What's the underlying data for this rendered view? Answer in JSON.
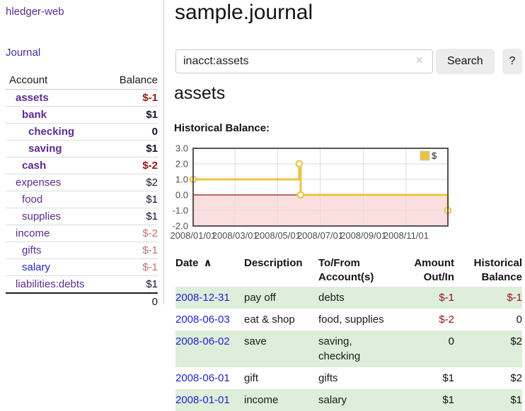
{
  "brand": "hledger-web",
  "sidebar": {
    "journal_link": "Journal",
    "accounts_table": {
      "account_header": "Account",
      "balance_header": "Balance",
      "rows": [
        {
          "name": "assets",
          "depth": 1,
          "bold": true,
          "balance": "$-1",
          "balance_style": "neg-strong"
        },
        {
          "name": "bank",
          "depth": 2,
          "bold": true,
          "balance": "$1",
          "balance_style": "pos"
        },
        {
          "name": "checking",
          "depth": 3,
          "bold": true,
          "balance": "0",
          "balance_style": "pos"
        },
        {
          "name": "saving",
          "depth": 3,
          "bold": true,
          "balance": "$1",
          "balance_style": "pos"
        },
        {
          "name": "cash",
          "depth": 2,
          "bold": true,
          "balance": "$-2",
          "balance_style": "neg-strong"
        },
        {
          "name": "expenses",
          "depth": 1,
          "bold": false,
          "balance": "$2",
          "balance_style": "pos"
        },
        {
          "name": "food",
          "depth": 2,
          "bold": false,
          "balance": "$1",
          "balance_style": "pos"
        },
        {
          "name": "supplies",
          "depth": 2,
          "bold": false,
          "balance": "$1",
          "balance_style": "pos"
        },
        {
          "name": "income",
          "depth": 1,
          "bold": false,
          "balance": "$-2",
          "balance_style": "neg-soft"
        },
        {
          "name": "gifts",
          "depth": 2,
          "bold": false,
          "balance": "$-1",
          "balance_style": "neg-soft"
        },
        {
          "name": "salary",
          "depth": 2,
          "bold": false,
          "balance": "$-1",
          "balance_style": "neg-soft",
          "link_color": "blue"
        },
        {
          "name": "liabilities:debts",
          "depth": 1,
          "bold": false,
          "balance": "$1",
          "balance_style": "pos"
        }
      ],
      "total": "0"
    }
  },
  "header": {
    "title": "sample.journal"
  },
  "search": {
    "value": "inacct:assets",
    "clear_icon": "×",
    "search_label": "Search",
    "help_label": "?"
  },
  "account_view": {
    "heading": "assets",
    "chart_title": "Historical Balance:"
  },
  "chart_data": {
    "type": "line",
    "step": true,
    "title": "Historical Balance",
    "series": [
      {
        "name": "$",
        "color": "#EDC240",
        "points": [
          {
            "date": "2008-01-01",
            "value": 1
          },
          {
            "date": "2008-06-01",
            "value": 2
          },
          {
            "date": "2008-06-03",
            "value": 0
          },
          {
            "date": "2008-12-31",
            "value": -1
          }
        ]
      }
    ],
    "x_start": "2008-01-01",
    "x_end": "2008-12-31",
    "ylim": [
      -2,
      3
    ],
    "yticks": [
      "3.0",
      "2.0",
      "1.0",
      "0.0",
      "-1.0",
      "-2.0"
    ],
    "xticks": [
      "2008/01/01",
      "2008/03/01",
      "2008/05/01",
      "2008/07/01",
      "2008/09/01",
      "2008/11/01"
    ],
    "legend": {
      "label": "$",
      "position": "top-right"
    },
    "colors": {
      "line": "#EDC240",
      "negative_fill": "#fbdfdf",
      "zero_line": "#8c1616",
      "grid": "#dcdcdc",
      "border": "#545454",
      "tick_text": "#4d4d4d"
    }
  },
  "register": {
    "sort_indicator": "∧",
    "columns": [
      {
        "lines": [
          "Date"
        ],
        "align": "left",
        "sortable": true
      },
      {
        "lines": [
          "Description"
        ],
        "align": "left"
      },
      {
        "lines": [
          "To/From",
          "Account(s)"
        ],
        "align": "left"
      },
      {
        "lines": [
          "Amount",
          "Out/In"
        ],
        "align": "right"
      },
      {
        "lines": [
          "Historical",
          "Balance"
        ],
        "align": "right"
      }
    ],
    "rows": [
      {
        "date": "2008-12-31",
        "description": "pay off",
        "accounts": "debts",
        "amount": "$-1",
        "amount_negative": true,
        "balance": "$-1",
        "balance_negative": true
      },
      {
        "date": "2008-06-03",
        "description": "eat & shop",
        "accounts": "food, supplies",
        "amount": "$-2",
        "amount_negative": true,
        "balance": "0",
        "balance_negative": false
      },
      {
        "date": "2008-06-02",
        "description": "save",
        "accounts": "saving, checking",
        "amount": "0",
        "amount_negative": false,
        "balance": "$2",
        "balance_negative": false
      },
      {
        "date": "2008-06-01",
        "description": "gift",
        "accounts": "gifts",
        "amount": "$1",
        "amount_negative": false,
        "balance": "$2",
        "balance_negative": false
      },
      {
        "date": "2008-01-01",
        "description": "income",
        "accounts": "salary",
        "amount": "$1",
        "amount_negative": false,
        "balance": "$1",
        "balance_negative": false
      }
    ]
  }
}
